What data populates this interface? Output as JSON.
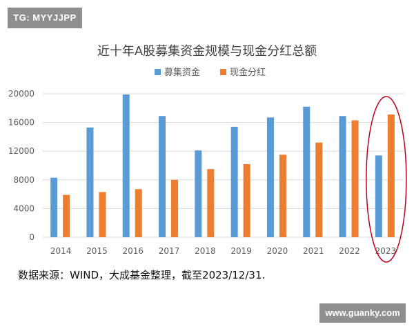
{
  "badge": {
    "text": "TG: MYYJJPP"
  },
  "watermark": {
    "text": "www.guanky.com"
  },
  "source_note": "数据来源：WIND，大成基金整理，截至2023/12/31.",
  "colors": {
    "series1": "#5b9bd5",
    "series2": "#ed7d31",
    "grid": "#d9d9d9",
    "highlight": "#c0001b",
    "text": "#595959"
  },
  "chart_data": {
    "type": "bar",
    "title": "近十年A股募集资金规模与现金分红总额",
    "categories": [
      "2014",
      "2015",
      "2016",
      "2017",
      "2018",
      "2019",
      "2020",
      "2021",
      "2022",
      "2023"
    ],
    "series": [
      {
        "name": "募集资金",
        "values": [
          8300,
          15300,
          19900,
          16900,
          12100,
          15400,
          16700,
          18200,
          16900,
          11400
        ]
      },
      {
        "name": "现金分红",
        "values": [
          5900,
          6300,
          6700,
          8000,
          9500,
          10200,
          11500,
          13200,
          16300,
          17100
        ]
      }
    ],
    "yticks": [
      "0",
      "4000",
      "8000",
      "12000",
      "16000",
      "20000"
    ],
    "ylim": [
      0,
      20000
    ],
    "grid": true,
    "legend_position": "top-center",
    "highlight_category": "2023"
  }
}
